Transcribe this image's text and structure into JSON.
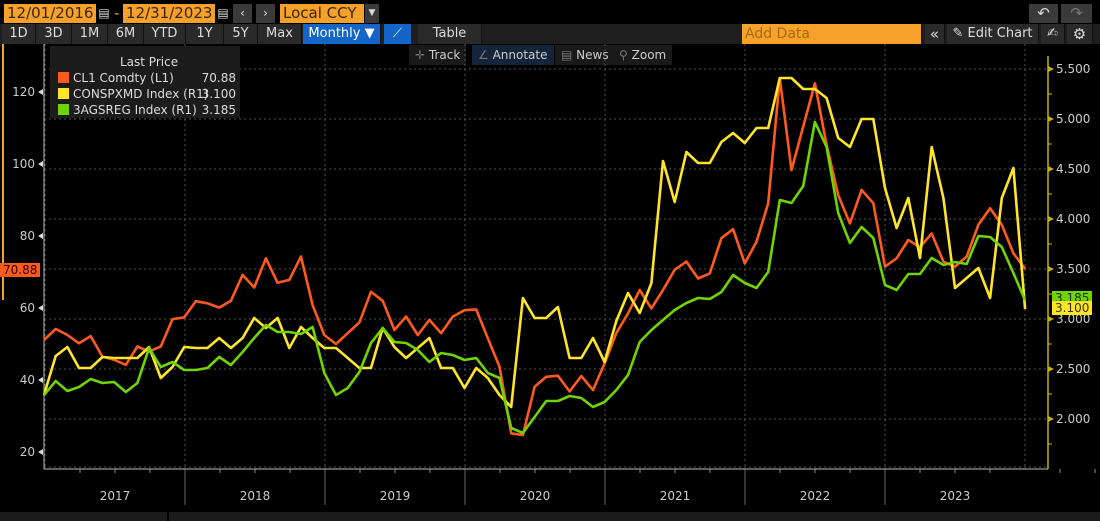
{
  "toolbar": {
    "start_date": "12/01/2016",
    "date_sep": "-",
    "end_date": "12/31/2023",
    "currency": "Local CCY",
    "periods": [
      "1D",
      "3D",
      "1M",
      "6M",
      "YTD",
      "1Y",
      "5Y",
      "Max"
    ],
    "frequency": "Monthly ▼",
    "table_label": "Table",
    "add_data_placeholder": "Add Data",
    "collapse": "«",
    "edit_chart": "Edit Chart",
    "undo": "↶",
    "redo": "↷"
  },
  "tools": [
    {
      "icon": "track-icon",
      "glyph": "✛",
      "label": "Track"
    },
    {
      "icon": "annotate-icon",
      "glyph": "∠",
      "label": "Annotate"
    },
    {
      "icon": "news-icon",
      "glyph": "▤",
      "label": "News"
    },
    {
      "icon": "zoom-icon",
      "glyph": "⚲",
      "label": "Zoom"
    }
  ],
  "legend": {
    "title": "Last Price",
    "items": [
      {
        "name": "CL1 Comdty  (L1)",
        "value": "70.88",
        "color": "#ff5a1e"
      },
      {
        "name": "CONSPXMD Index  (R1)",
        "value": "3.100",
        "color": "#ffe52a"
      },
      {
        "name": "3AGSREG Index  (R1)",
        "value": "3.185",
        "color": "#6fd400"
      }
    ]
  },
  "price_tags": {
    "left": "70.88",
    "right_green": "3.185",
    "right_yellow": "3.100"
  },
  "chart_data": {
    "type": "line",
    "x_start": "2016-12",
    "x_end": "2023-12",
    "frequency": "monthly",
    "x_tick_labels": [
      "2017",
      "2018",
      "2019",
      "2020",
      "2021",
      "2022",
      "2023"
    ],
    "left_axis": {
      "ticks": [
        20,
        40,
        60,
        80,
        100,
        120
      ],
      "range": [
        15.6,
        130
      ]
    },
    "right_axis": {
      "ticks": [
        "2.000",
        "2.500",
        "3.000",
        "3.500",
        "4.000",
        "4.500",
        "5.000",
        "5.500"
      ],
      "range": [
        1.49,
        5.64
      ]
    },
    "grid": true,
    "legend_placement": "top-left",
    "series": [
      {
        "name": "CL1 Comdty",
        "axis": "left",
        "color": "#ff5a1e",
        "values": [
          51.1,
          54.2,
          52.5,
          50.2,
          52.2,
          46.5,
          45.6,
          44.2,
          49.3,
          47.9,
          49.3,
          56.9,
          57.4,
          61.9,
          61.3,
          60.1,
          62.0,
          69.2,
          65.7,
          73.8,
          67.0,
          67.8,
          74.3,
          60.8,
          52.5,
          50.0,
          53.0,
          56.0,
          64.5,
          62.0,
          53.9,
          57.6,
          52.5,
          56.7,
          53.0,
          57.6,
          59.4,
          59.6,
          51.6,
          43.7,
          25.2,
          24.7,
          38.1,
          40.9,
          41.2,
          36.8,
          41.1,
          37.2,
          44.6,
          53.0,
          58.5,
          65.0,
          59.9,
          65.0,
          70.6,
          72.9,
          68.2,
          69.6,
          79.4,
          81.9,
          72.4,
          78.4,
          89.1,
          123.8,
          98.3,
          110.4,
          122.4,
          105.3,
          91.4,
          83.5,
          92.8,
          89.1,
          71.5,
          73.8,
          78.9,
          76.9,
          80.7,
          72.9,
          71.5,
          74.3,
          83.1,
          87.7,
          83.1,
          75.2,
          70.88
        ]
      },
      {
        "name": "CONSPXMD Index",
        "axis": "right",
        "color": "#ffe52a",
        "values": [
          2.24,
          2.63,
          2.72,
          2.51,
          2.51,
          2.62,
          2.61,
          2.61,
          2.61,
          2.72,
          2.41,
          2.52,
          2.72,
          2.71,
          2.71,
          2.81,
          2.71,
          2.81,
          3.01,
          2.91,
          3.01,
          2.71,
          2.92,
          2.81,
          2.71,
          2.71,
          2.61,
          2.51,
          2.51,
          2.91,
          2.72,
          2.61,
          2.71,
          2.81,
          2.51,
          2.51,
          2.31,
          2.51,
          2.41,
          2.24,
          2.12,
          3.21,
          3.01,
          3.01,
          3.12,
          2.61,
          2.61,
          2.81,
          2.57,
          2.98,
          3.26,
          3.06,
          3.36,
          4.58,
          4.17,
          4.67,
          4.56,
          4.56,
          4.77,
          4.86,
          4.76,
          4.91,
          4.91,
          5.41,
          5.41,
          5.3,
          5.3,
          5.21,
          4.81,
          4.72,
          5.0,
          5.0,
          4.31,
          3.91,
          4.21,
          3.61,
          4.72,
          4.21,
          3.31,
          3.41,
          3.51,
          3.21,
          4.21,
          4.51,
          3.1
        ]
      },
      {
        "name": "3AGSREG Index",
        "axis": "right",
        "color": "#6fd400",
        "values": [
          2.24,
          2.38,
          2.28,
          2.32,
          2.4,
          2.36,
          2.37,
          2.27,
          2.36,
          2.71,
          2.52,
          2.57,
          2.49,
          2.49,
          2.51,
          2.62,
          2.54,
          2.67,
          2.81,
          2.94,
          2.87,
          2.87,
          2.85,
          2.92,
          2.46,
          2.24,
          2.31,
          2.47,
          2.76,
          2.91,
          2.77,
          2.76,
          2.69,
          2.57,
          2.66,
          2.64,
          2.59,
          2.61,
          2.46,
          2.41,
          1.91,
          1.86,
          2.02,
          2.18,
          2.18,
          2.23,
          2.21,
          2.12,
          2.17,
          2.29,
          2.44,
          2.77,
          2.89,
          2.99,
          3.09,
          3.16,
          3.21,
          3.2,
          3.27,
          3.44,
          3.36,
          3.31,
          3.47,
          4.19,
          4.16,
          4.33,
          4.97,
          4.72,
          4.06,
          3.76,
          3.92,
          3.81,
          3.34,
          3.29,
          3.45,
          3.45,
          3.61,
          3.54,
          3.57,
          3.55,
          3.83,
          3.82,
          3.72,
          3.46,
          3.185
        ]
      }
    ]
  }
}
